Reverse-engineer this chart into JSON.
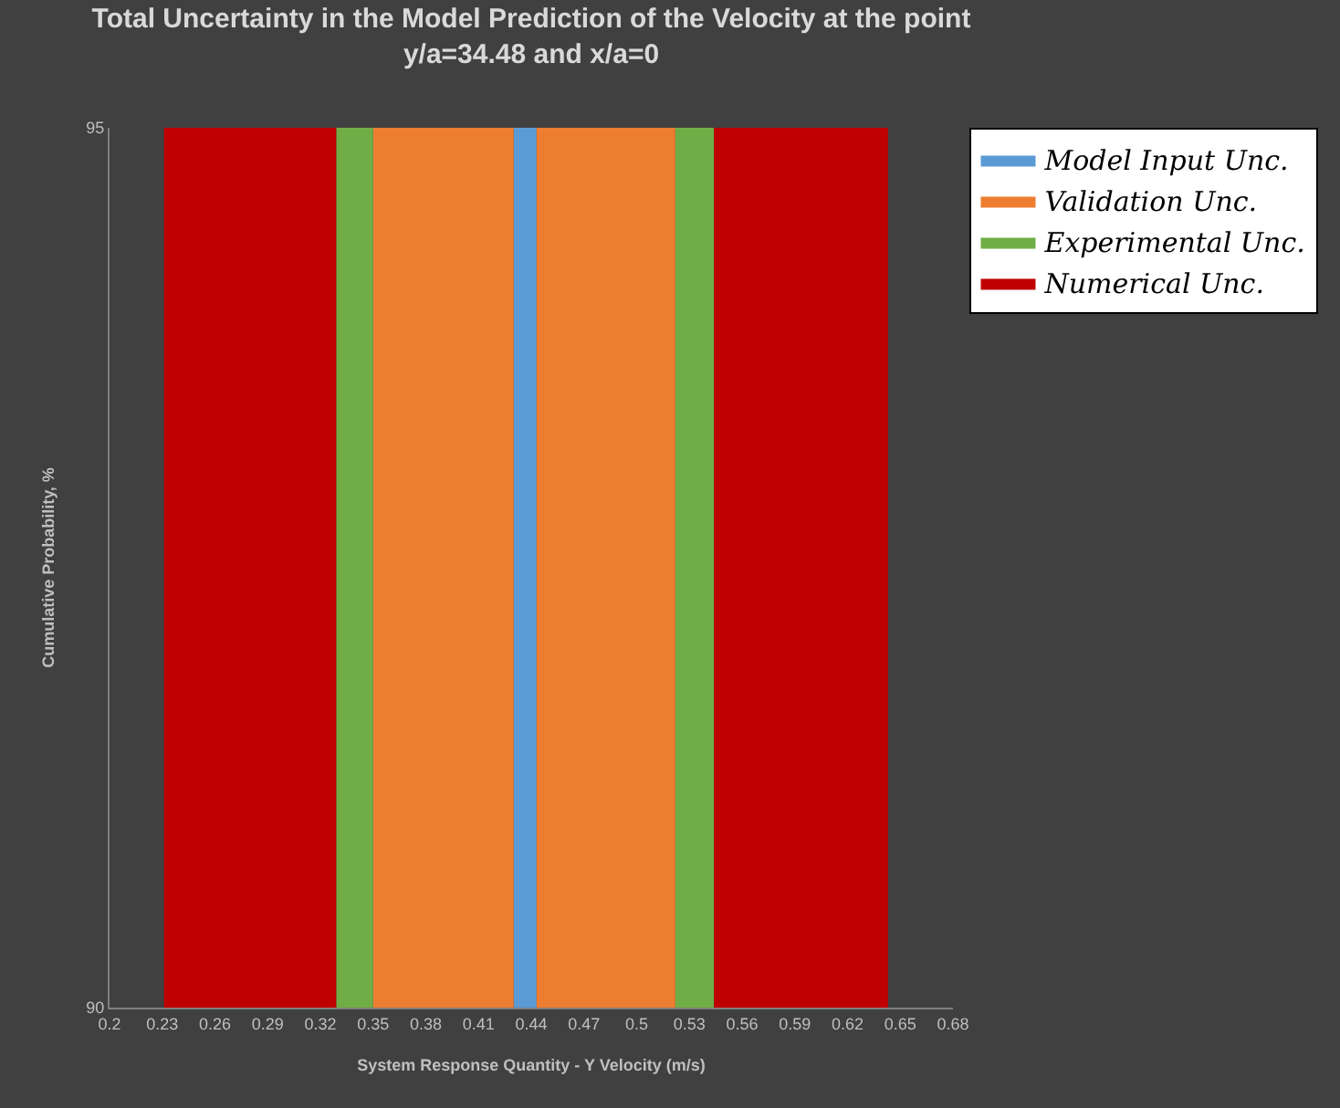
{
  "chart_data": {
    "type": "area",
    "title": "Total Uncertainty in the Model Prediction of the Velocity at the point\ny/a=34.48 and x/a=0",
    "xlabel": "System Response Quantity - Y Velocity (m/s)",
    "ylabel": "Cumulative Probability, %",
    "series": [
      {
        "name": "Model Input Unc.",
        "color": "#5b9bd5",
        "x": [
          0.43,
          0.443
        ],
        "values": [
          95,
          95
        ]
      },
      {
        "name": "Validation Unc.",
        "color": "#ed7d31",
        "x": [
          0.35,
          0.43,
          null,
          0.443,
          0.522
        ],
        "values": [
          95,
          95,
          null,
          95,
          95
        ]
      },
      {
        "name": "Experimental Unc.",
        "color": "#70ad47",
        "x": [
          0.329,
          0.35,
          null,
          0.522,
          0.544
        ],
        "values": [
          95,
          95,
          null,
          95,
          95
        ]
      },
      {
        "name": "Numerical Unc.",
        "color": "#c00000",
        "x": [
          0.231,
          0.329,
          null,
          0.544,
          0.643
        ],
        "values": [
          95,
          95,
          null,
          95,
          95
        ]
      }
    ],
    "xlim": [
      0.2,
      0.68
    ],
    "xticks": [
      0.2,
      0.23,
      0.26,
      0.29,
      0.32,
      0.35,
      0.38,
      0.41,
      0.44,
      0.47,
      0.5,
      0.53,
      0.56,
      0.59,
      0.62,
      0.65,
      0.68
    ],
    "ylim": [
      90,
      95
    ],
    "yticks": [
      90,
      95
    ],
    "grid": false,
    "legend": "right"
  }
}
